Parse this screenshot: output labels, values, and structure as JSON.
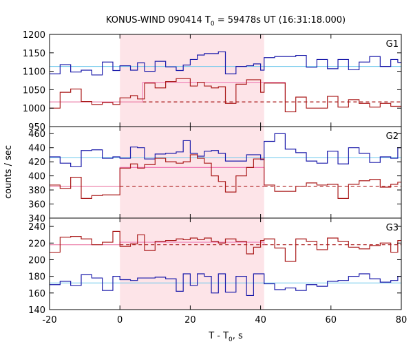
{
  "chart_data": {
    "type": "line",
    "title_main": "KONUS-WIND 090414 T",
    "title_sub": "0",
    "title_rest": " = 59478s UT (16:31:18.000)",
    "xlabel_main": "T - T",
    "xlabel_sub": "0",
    "xlabel_rest": ", s",
    "ylabel": "counts / sec",
    "xlim": [
      -20,
      80
    ],
    "xticks": [
      -20,
      0,
      20,
      40,
      60,
      80
    ],
    "highlight_interval": [
      0,
      41
    ],
    "colors": {
      "blue_step": "#1a1aaa",
      "red_step": "#aa1a1a",
      "blue_bg": "#6ec8ec",
      "red_bg": "#e8689a",
      "pink_avg": "#f080b8",
      "highlight": "#fde4e8"
    },
    "panels": [
      {
        "label": "G1",
        "ylim": [
          950,
          1200
        ],
        "yticks": [
          950,
          1000,
          1050,
          1100,
          1150,
          1200
        ],
        "blue_background": 1113,
        "red_background": 1017,
        "pink_average": 1070,
        "pink_interval": [
          6.5,
          47
        ],
        "blue_steps": {
          "edges": [
            -20,
            -17,
            -14,
            -11,
            -8,
            -5,
            -2,
            0,
            3,
            5,
            7,
            10,
            13,
            16,
            18,
            20,
            22,
            24,
            26,
            28,
            30,
            33,
            36,
            38,
            40,
            41,
            44,
            47,
            50,
            53,
            56,
            59,
            62,
            65,
            68,
            71,
            74,
            77,
            79,
            80
          ],
          "values": [
            1093,
            1118,
            1098,
            1103,
            1090,
            1125,
            1102,
            1115,
            1103,
            1123,
            1100,
            1127,
            1112,
            1102,
            1117,
            1132,
            1144,
            1148,
            1148,
            1153,
            1093,
            1113,
            1115,
            1120,
            1103,
            1137,
            1140,
            1140,
            1143,
            1111,
            1132,
            1107,
            1132,
            1104,
            1125,
            1140,
            1113,
            1132,
            1124
          ]
        },
        "red_steps": {
          "edges": [
            -20,
            -17,
            -14,
            -11,
            -8,
            -5,
            -2,
            0,
            3,
            5,
            7,
            10,
            13,
            16,
            18,
            20,
            22,
            24,
            26,
            28,
            30,
            33,
            36,
            38,
            40,
            41,
            44,
            47,
            50,
            53,
            56,
            59,
            62,
            65,
            68,
            71,
            74,
            77,
            79,
            80
          ],
          "values": [
            1000,
            1043,
            1052,
            1018,
            1010,
            1015,
            1010,
            1028,
            1034,
            1025,
            1068,
            1055,
            1072,
            1080,
            1080,
            1060,
            1070,
            1060,
            1055,
            1058,
            1013,
            1065,
            1077,
            1077,
            1043,
            1068,
            1068,
            990,
            1030,
            1000,
            1000,
            1032,
            1003,
            1023,
            1013,
            1003,
            1013,
            1005,
            1005
          ]
        }
      },
      {
        "label": "G2",
        "ylim": [
          340,
          470
        ],
        "yticks": [
          340,
          360,
          380,
          400,
          420,
          440,
          460
        ],
        "blue_background": 426,
        "red_background": 385,
        "pink_average": 412,
        "pink_interval": [
          0,
          41
        ],
        "blue_steps": {
          "edges": [
            -20,
            -17,
            -14,
            -11,
            -8,
            -5,
            -2,
            0,
            3,
            5,
            7,
            10,
            13,
            16,
            18,
            20,
            22,
            24,
            26,
            28,
            30,
            33,
            36,
            38,
            40,
            41,
            44,
            47,
            50,
            53,
            56,
            59,
            62,
            65,
            68,
            71,
            74,
            77,
            79,
            80
          ],
          "values": [
            427,
            418,
            413,
            436,
            437,
            425,
            427,
            425,
            441,
            440,
            424,
            431,
            432,
            434,
            450,
            432,
            428,
            435,
            436,
            432,
            421,
            421,
            430,
            430,
            423,
            449,
            460,
            438,
            433,
            421,
            418,
            435,
            417,
            440,
            432,
            419,
            427,
            425,
            440
          ]
        },
        "red_steps": {
          "edges": [
            -20,
            -17,
            -14,
            -11,
            -8,
            -5,
            -2,
            0,
            3,
            5,
            7,
            10,
            13,
            16,
            18,
            20,
            22,
            24,
            26,
            28,
            30,
            33,
            36,
            38,
            40,
            41,
            44,
            47,
            50,
            53,
            56,
            59,
            62,
            65,
            68,
            71,
            74,
            77,
            79,
            80
          ],
          "values": [
            387,
            382,
            398,
            368,
            372,
            373,
            373,
            411,
            417,
            411,
            416,
            425,
            420,
            418,
            420,
            430,
            425,
            418,
            400,
            392,
            377,
            400,
            412,
            424,
            424,
            387,
            378,
            378,
            385,
            390,
            387,
            388,
            368,
            388,
            393,
            395,
            384,
            388,
            391
          ]
        }
      },
      {
        "label": "G3",
        "ylim": [
          140,
          250
        ],
        "yticks": [
          140,
          160,
          180,
          200,
          220,
          240
        ],
        "blue_background": 172,
        "red_background": 218,
        "pink_average": 221,
        "pink_interval": [
          0,
          41
        ],
        "blue_steps": {
          "edges": [
            -20,
            -17,
            -14,
            -11,
            -8,
            -5,
            -2,
            0,
            3,
            5,
            7,
            10,
            13,
            16,
            18,
            20,
            22,
            24,
            26,
            28,
            30,
            33,
            36,
            38,
            40,
            41,
            44,
            47,
            50,
            53,
            56,
            59,
            62,
            65,
            68,
            71,
            74,
            77,
            79,
            80
          ],
          "values": [
            170,
            174,
            169,
            182,
            178,
            163,
            180,
            176,
            175,
            178,
            178,
            179,
            177,
            162,
            183,
            169,
            183,
            180,
            160,
            183,
            161,
            180,
            157,
            183,
            183,
            171,
            164,
            166,
            163,
            170,
            168,
            174,
            175,
            180,
            183,
            177,
            173,
            175,
            180
          ]
        },
        "red_steps": {
          "edges": [
            -20,
            -17,
            -14,
            -11,
            -8,
            -5,
            -2,
            0,
            3,
            5,
            7,
            10,
            13,
            16,
            18,
            20,
            22,
            24,
            26,
            28,
            30,
            33,
            36,
            38,
            40,
            41,
            44,
            47,
            50,
            53,
            56,
            59,
            62,
            65,
            68,
            71,
            74,
            77,
            79,
            80
          ],
          "values": [
            209,
            227,
            228,
            225,
            218,
            221,
            234,
            216,
            219,
            230,
            211,
            222,
            223,
            225,
            224,
            226,
            224,
            226,
            222,
            220,
            225,
            222,
            207,
            215,
            223,
            225,
            214,
            198,
            225,
            222,
            212,
            226,
            222,
            215,
            213,
            217,
            220,
            209,
            223
          ]
        }
      }
    ]
  }
}
